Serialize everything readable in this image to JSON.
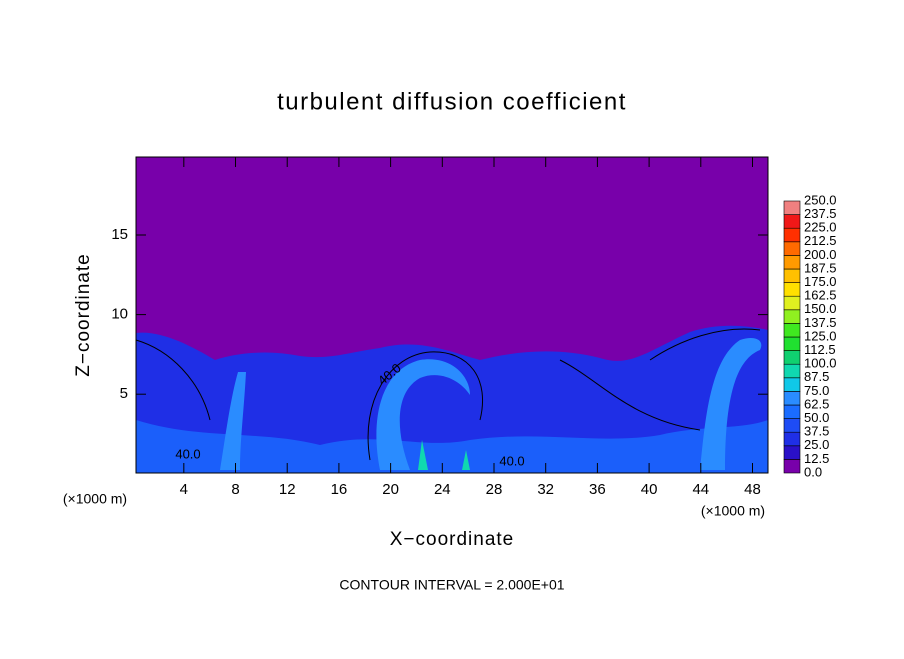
{
  "chart_data": {
    "type": "contour",
    "title": "turbulent diffusion coefficient",
    "x_label": "X−coordinate",
    "y_label": "Z−coordinate",
    "x_unit": "(×1000 m)",
    "y_unit": "(×1000 m)",
    "footer": "CONTOUR INTERVAL = 2.000E+01",
    "contour_labels": [
      "40.0",
      "40.0",
      "40.0"
    ],
    "xlim": [
      0.3,
      49.2
    ],
    "ylim": [
      0.05,
      19.9
    ],
    "xticks": [
      4,
      8,
      12,
      16,
      20,
      24,
      28,
      32,
      36,
      40,
      44,
      48
    ],
    "yticks": [
      5,
      10,
      15
    ],
    "colorbar": {
      "levels": [
        {
          "value": 0,
          "label": "0.0"
        },
        12.5,
        {
          "value": 25,
          "label": "25.0"
        },
        37.5,
        {
          "value": 50,
          "label": "50.0"
        },
        62.5,
        {
          "value": 75,
          "label": "75.0"
        },
        87.5,
        {
          "value": 100,
          "label": "100.0"
        },
        112.5,
        {
          "value": 125,
          "label": "125.0"
        },
        137.5,
        {
          "value": 150,
          "label": "150.0"
        },
        162.5,
        {
          "value": 175,
          "label": "175.0"
        },
        187.5,
        {
          "value": 200,
          "label": "200.0"
        },
        212.5,
        {
          "value": 225,
          "label": "225.0"
        },
        237.5,
        {
          "value": 250,
          "label": "250.0"
        }
      ],
      "colors": [
        "#7800aa",
        "#2a10c8",
        "#1f2fe6",
        "#1e4cf5",
        "#1a6cff",
        "#2a8cff",
        "#10c8e8",
        "#10d8b0",
        "#10d070",
        "#20e030",
        "#40e820",
        "#90f020",
        "#e0f020",
        "#ffe000",
        "#ffc000",
        "#ff9a00",
        "#ff6a00",
        "#ff3000",
        "#f01818",
        "#f08080"
      ]
    }
  }
}
